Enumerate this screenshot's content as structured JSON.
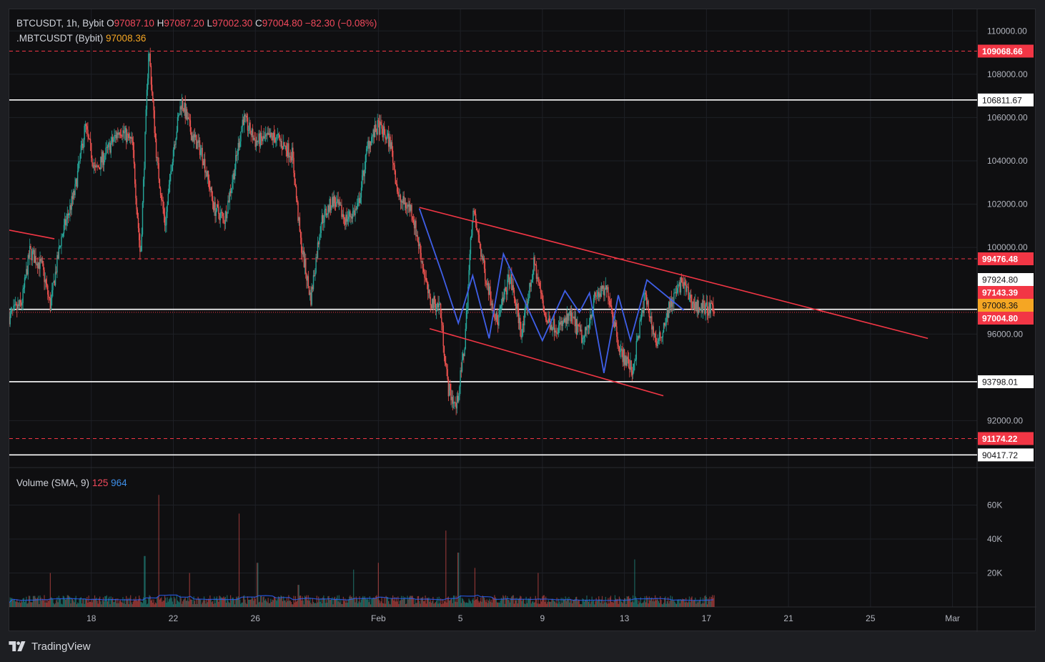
{
  "header": {
    "symbol": "BTCUSDT, 1h, Bybit",
    "ohlc": [
      {
        "key": "O",
        "value": "97087.10"
      },
      {
        "key": "H",
        "value": "97087.20"
      },
      {
        "key": "L",
        "value": "97002.30"
      },
      {
        "key": "C",
        "value": "97004.80"
      }
    ],
    "change": "−82.30 (−0.08%)",
    "mark_label": ".MBTCUSDT (Bybit)",
    "mark_value": "97008.36"
  },
  "volume_legend": {
    "label": "Volume (SMA, 9)",
    "value1": "125",
    "value2": "964"
  },
  "footer": {
    "brand": "TradingView"
  },
  "colors": {
    "up": "#26a69a",
    "down": "#ef5350",
    "trend": "#f23645",
    "zigzag": "#3f5fe8",
    "level": "#ffffff",
    "mark": "#f5a623",
    "background": "#0f0f11",
    "grid": "#1e2026"
  },
  "chart_data": {
    "type": "candlestick",
    "interval": "1h",
    "y_axis": {
      "min": 90000,
      "max": 111000
    },
    "y_ticks": [
      "110000.00",
      "108000.00",
      "106000.00",
      "104000.00",
      "102000.00",
      "100000.00",
      "96000.00",
      "92000.00"
    ],
    "x_ticks": [
      {
        "label": "18",
        "day": 18
      },
      {
        "label": "22",
        "day": 22
      },
      {
        "label": "26",
        "day": 26
      },
      {
        "label": "Feb",
        "day": 32
      },
      {
        "label": "5",
        "day": 36
      },
      {
        "label": "9",
        "day": 40
      },
      {
        "label": "13",
        "day": 44
      },
      {
        "label": "17",
        "day": 48
      },
      {
        "label": "21",
        "day": 52
      },
      {
        "label": "25",
        "day": 56
      },
      {
        "label": "Mar",
        "day": 60
      }
    ],
    "horizontal_levels": [
      {
        "price": 106811.67,
        "label": "106811.67",
        "style": "solid",
        "color": "#ffffff"
      },
      {
        "price": 97143.39,
        "label": "97143.39",
        "style": "solid",
        "color": "#ffffff"
      },
      {
        "price": 93798.01,
        "label": "93798.01",
        "style": "solid",
        "color": "#ffffff"
      },
      {
        "price": 90417.72,
        "label": "90417.72",
        "style": "solid",
        "color": "#ffffff"
      },
      {
        "price": 109068.66,
        "label": "109068.66",
        "style": "dashed",
        "color": "#f23645"
      },
      {
        "price": 99476.48,
        "label": "99476.48",
        "style": "dashed",
        "color": "#f23645"
      },
      {
        "price": 91174.22,
        "label": "91174.22",
        "style": "dashed",
        "color": "#f23645"
      }
    ],
    "price_tags": [
      {
        "price": 97924.8,
        "label": "97924.80",
        "bg": "#ffffff",
        "fg": "#131316",
        "bold": false
      },
      {
        "price": 97143.39,
        "label": "97143.39",
        "bg": "#f23645",
        "fg": "#ffffff",
        "bold": true
      },
      {
        "price": 97008.36,
        "label": "97008.36",
        "bg": "#f5a623",
        "fg": "#131316",
        "bold": false
      },
      {
        "price": 97004.8,
        "label": "97004.80",
        "bg": "#f23645",
        "fg": "#ffffff",
        "bold": true
      }
    ],
    "last_price": 97004.8,
    "trend_lines": [
      {
        "from": {
          "day": 14,
          "price": 100800
        },
        "to": {
          "day": 16.2,
          "price": 100400
        }
      },
      {
        "from": {
          "day": 34.0,
          "price": 101850
        },
        "to": {
          "day": 58.8,
          "price": 95800
        }
      },
      {
        "from": {
          "day": 34.5,
          "price": 96250
        },
        "to": {
          "day": 45.9,
          "price": 93150
        }
      }
    ],
    "zigzag": [
      {
        "day": 34.0,
        "price": 101800
      },
      {
        "day": 35.1,
        "price": 98800
      },
      {
        "day": 35.9,
        "price": 96500
      },
      {
        "day": 36.6,
        "price": 98700
      },
      {
        "day": 37.4,
        "price": 95800
      },
      {
        "day": 38.1,
        "price": 99700
      },
      {
        "day": 40.0,
        "price": 95700
      },
      {
        "day": 41.1,
        "price": 98000
      },
      {
        "day": 41.8,
        "price": 97000
      },
      {
        "day": 42.3,
        "price": 97900
      },
      {
        "day": 43.0,
        "price": 94200
      },
      {
        "day": 43.7,
        "price": 97800
      },
      {
        "day": 44.3,
        "price": 95700
      },
      {
        "day": 45.1,
        "price": 98500
      },
      {
        "day": 46.9,
        "price": 97100
      }
    ],
    "price_path": [
      {
        "day": 14.0,
        "price": 96800
      },
      {
        "day": 14.6,
        "price": 97400
      },
      {
        "day": 15.0,
        "price": 99800
      },
      {
        "day": 15.6,
        "price": 99100
      },
      {
        "day": 16.0,
        "price": 97300
      },
      {
        "day": 16.5,
        "price": 100300
      },
      {
        "day": 17.2,
        "price": 102600
      },
      {
        "day": 17.7,
        "price": 105600
      },
      {
        "day": 18.2,
        "price": 103500
      },
      {
        "day": 18.8,
        "price": 104500
      },
      {
        "day": 19.4,
        "price": 105500
      },
      {
        "day": 20.0,
        "price": 104800
      },
      {
        "day": 20.4,
        "price": 99500
      },
      {
        "day": 20.8,
        "price": 109300
      },
      {
        "day": 21.2,
        "price": 104000
      },
      {
        "day": 21.6,
        "price": 101000
      },
      {
        "day": 22.0,
        "price": 104600
      },
      {
        "day": 22.4,
        "price": 106800
      },
      {
        "day": 22.9,
        "price": 105200
      },
      {
        "day": 23.4,
        "price": 104400
      },
      {
        "day": 24.0,
        "price": 101800
      },
      {
        "day": 24.5,
        "price": 101300
      },
      {
        "day": 25.0,
        "price": 103700
      },
      {
        "day": 25.4,
        "price": 106000
      },
      {
        "day": 26.0,
        "price": 104900
      },
      {
        "day": 27.0,
        "price": 105100
      },
      {
        "day": 27.8,
        "price": 104300
      },
      {
        "day": 28.2,
        "price": 100300
      },
      {
        "day": 28.7,
        "price": 97600
      },
      {
        "day": 29.2,
        "price": 101200
      },
      {
        "day": 29.8,
        "price": 102200
      },
      {
        "day": 30.4,
        "price": 101300
      },
      {
        "day": 31.0,
        "price": 101800
      },
      {
        "day": 31.5,
        "price": 104800
      },
      {
        "day": 32.0,
        "price": 105600
      },
      {
        "day": 32.6,
        "price": 104800
      },
      {
        "day": 33.0,
        "price": 102200
      },
      {
        "day": 33.6,
        "price": 101800
      },
      {
        "day": 34.0,
        "price": 100000
      },
      {
        "day": 34.5,
        "price": 97500
      },
      {
        "day": 35.0,
        "price": 97300
      },
      {
        "day": 35.4,
        "price": 93500
      },
      {
        "day": 35.8,
        "price": 92600
      },
      {
        "day": 36.2,
        "price": 95400
      },
      {
        "day": 36.6,
        "price": 101800
      },
      {
        "day": 37.2,
        "price": 98800
      },
      {
        "day": 37.8,
        "price": 96500
      },
      {
        "day": 38.4,
        "price": 98700
      },
      {
        "day": 39.0,
        "price": 96000
      },
      {
        "day": 39.6,
        "price": 99300
      },
      {
        "day": 40.2,
        "price": 96600
      },
      {
        "day": 40.8,
        "price": 96300
      },
      {
        "day": 41.4,
        "price": 96800
      },
      {
        "day": 42.0,
        "price": 95700
      },
      {
        "day": 42.6,
        "price": 97800
      },
      {
        "day": 43.2,
        "price": 98000
      },
      {
        "day": 43.8,
        "price": 95200
      },
      {
        "day": 44.4,
        "price": 94300
      },
      {
        "day": 45.0,
        "price": 97800
      },
      {
        "day": 45.6,
        "price": 95400
      },
      {
        "day": 46.2,
        "price": 97300
      },
      {
        "day": 46.8,
        "price": 98400
      },
      {
        "day": 47.4,
        "price": 97300
      },
      {
        "day": 48.0,
        "price": 97200
      },
      {
        "day": 48.4,
        "price": 97000
      }
    ],
    "volume": {
      "y_axis": {
        "min": 0,
        "max": 80000
      },
      "y_ticks": [
        {
          "label": "60K",
          "value": 60000
        },
        {
          "label": "40K",
          "value": 40000
        },
        {
          "label": "20K",
          "value": 20000
        }
      ],
      "spikes": [
        {
          "day": 16.0,
          "value": 20000
        },
        {
          "day": 20.6,
          "value": 30000
        },
        {
          "day": 21.3,
          "value": 66000
        },
        {
          "day": 22.8,
          "value": 20000
        },
        {
          "day": 25.2,
          "value": 55000
        },
        {
          "day": 26.1,
          "value": 26000
        },
        {
          "day": 28.1,
          "value": 13000
        },
        {
          "day": 30.8,
          "value": 22000
        },
        {
          "day": 32.0,
          "value": 26000
        },
        {
          "day": 35.3,
          "value": 45000
        },
        {
          "day": 35.9,
          "value": 32000
        },
        {
          "day": 36.7,
          "value": 23000
        },
        {
          "day": 39.8,
          "value": 20000
        },
        {
          "day": 44.5,
          "value": 28000
        }
      ]
    }
  }
}
